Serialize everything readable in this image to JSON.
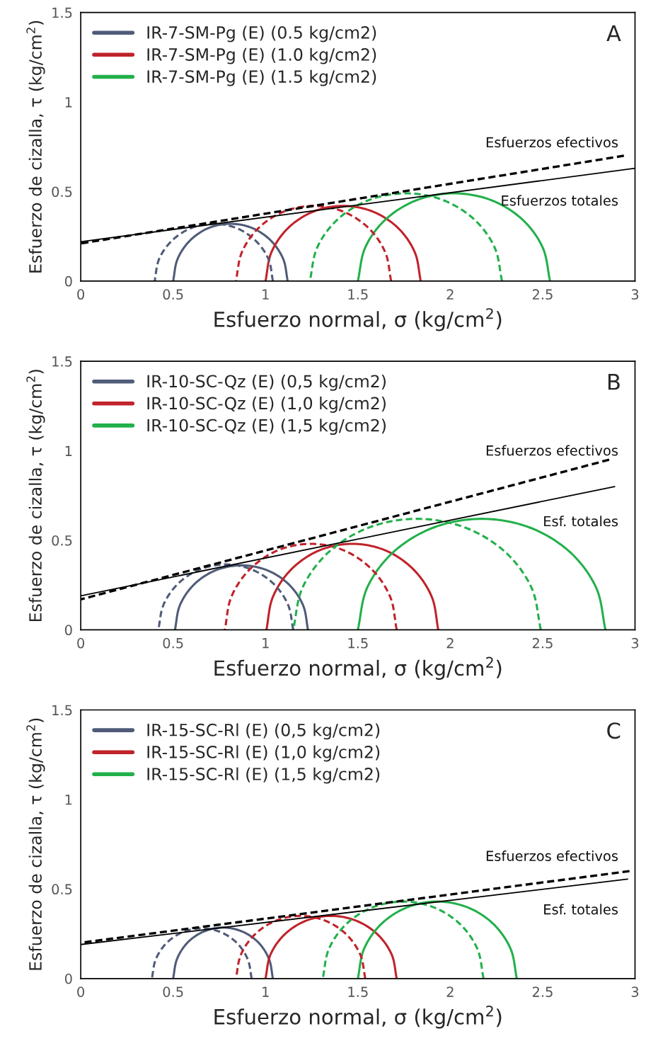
{
  "chart_data": [
    {
      "type": "line",
      "title": "A",
      "xlabel": "Esfuerzo normal, σ (kg/cm$^{2}$)",
      "ylabel": "Esfuerzo de cizalla, τ (kg/cm$^{2}$)",
      "xlim": [
        0,
        3
      ],
      "ylim": [
        0,
        1.5
      ],
      "xticks": [
        0,
        0.5,
        1,
        1.5,
        2,
        2.5,
        3
      ],
      "yticks": [
        0,
        0.5,
        1,
        1.5
      ],
      "legend": "top left",
      "annotations": [
        "Esfuerzos efectivos",
        "Esfuerzos totales"
      ],
      "series": [
        {
          "name": "IR-7-SM-Pg (E) (0.5 kg/cm2)",
          "color": "#4f5b78",
          "line_style": "solid",
          "x": [
            1.12,
            1.096,
            1.029,
            0.929,
            0.81,
            0.691,
            0.591,
            0.524,
            0.5
          ],
          "values": [
            0,
            0.123,
            0.226,
            0.296,
            0.32,
            0.296,
            0.226,
            0.123,
            0
          ]
        },
        {
          "name": "IR-7-SM-Pg (E) (1.0 kg/cm2)",
          "color": "#c0232b",
          "line_style": "solid",
          "x": [
            1.84,
            1.808,
            1.717,
            1.581,
            1.42,
            1.259,
            1.123,
            1.032,
            1.0
          ],
          "values": [
            0,
            0.161,
            0.297,
            0.388,
            0.42,
            0.388,
            0.297,
            0.161,
            0
          ]
        },
        {
          "name": "IR-7-SM-Pg (E) (1.5 kg/cm2)",
          "color": "#22b04b",
          "line_style": "solid",
          "x": [
            2.54,
            2.5,
            2.388,
            2.219,
            2.02,
            1.821,
            1.652,
            1.54,
            1.5
          ],
          "values": [
            0,
            0.188,
            0.346,
            0.453,
            0.49,
            0.453,
            0.346,
            0.188,
            0
          ]
        },
        {
          "color": "#4f5b78",
          "line_style": "dashed",
          "x": [
            1.04,
            1.016,
            0.946,
            0.843,
            0.72,
            0.597,
            0.494,
            0.424,
            0.4
          ],
          "values": [
            0,
            0.123,
            0.226,
            0.296,
            0.32,
            0.296,
            0.226,
            0.123,
            0
          ]
        },
        {
          "color": "#c0232b",
          "line_style": "dashed",
          "x": [
            1.68,
            1.648,
            1.557,
            1.421,
            1.26,
            1.099,
            0.963,
            0.872,
            0.84
          ],
          "values": [
            0,
            0.161,
            0.297,
            0.388,
            0.42,
            0.388,
            0.297,
            0.161,
            0
          ]
        },
        {
          "color": "#22b04b",
          "line_style": "dashed",
          "x": [
            2.28,
            2.24,
            2.128,
            1.959,
            1.76,
            1.561,
            1.392,
            1.28,
            1.24
          ],
          "values": [
            0,
            0.188,
            0.346,
            0.453,
            0.49,
            0.453,
            0.346,
            0.188,
            0
          ]
        },
        {
          "color": "#000000",
          "line_style": "dashed",
          "x": [
            0,
            2.94
          ],
          "values": [
            0.21,
            0.7
          ]
        },
        {
          "color": "#000000",
          "line_style": "solid",
          "x": [
            0,
            3
          ],
          "values": [
            0.22,
            0.63
          ]
        }
      ]
    },
    {
      "type": "line",
      "title": "B",
      "xlabel": "Esfuerzo normal, σ (kg/cm$^{2}$)",
      "ylabel": "Esfuerzo de cizalla, τ (kg/cm$^{2}$)",
      "xlim": [
        0,
        3
      ],
      "ylim": [
        0,
        1.5
      ],
      "xticks": [
        0,
        0.5,
        1,
        1.5,
        2,
        2.5,
        3
      ],
      "yticks": [
        0,
        0.5,
        1,
        1.5
      ],
      "legend": "top left",
      "annotations": [
        "Esfuerzos efectivos",
        "Esf. totales"
      ],
      "series": [
        {
          "name": "IR-10-SC-Qz (E) (0,5 kg/cm2)",
          "color": "#4f5b78",
          "line_style": "solid",
          "x": [
            1.23,
            1.203,
            1.125,
            1.008,
            0.87,
            0.732,
            0.615,
            0.537,
            0.51
          ],
          "values": [
            0,
            0.138,
            0.255,
            0.333,
            0.36,
            0.333,
            0.255,
            0.138,
            0
          ]
        },
        {
          "name": "IR-10-SC-Qz (E) (1,0 kg/cm2)",
          "color": "#c0232b",
          "line_style": "solid",
          "x": [
            1.935,
            1.9,
            1.799,
            1.648,
            1.47,
            1.292,
            1.141,
            1.04,
            1.005
          ],
          "values": [
            0,
            0.184,
            0.339,
            0.444,
            0.48,
            0.444,
            0.339,
            0.184,
            0
          ]
        },
        {
          "name": "IR-10-SC-Qz (E) (1,5 kg/cm2)",
          "color": "#22b04b",
          "line_style": "solid",
          "x": [
            2.84,
            2.789,
            2.644,
            2.426,
            2.17,
            1.914,
            1.696,
            1.551,
            1.5
          ],
          "values": [
            0,
            0.237,
            0.438,
            0.573,
            0.62,
            0.573,
            0.438,
            0.237,
            0
          ]
        },
        {
          "color": "#4f5b78",
          "line_style": "dashed",
          "x": [
            1.15,
            1.122,
            1.043,
            0.925,
            0.785,
            0.645,
            0.527,
            0.448,
            0.42
          ],
          "values": [
            0,
            0.14,
            0.258,
            0.337,
            0.365,
            0.337,
            0.258,
            0.14,
            0
          ]
        },
        {
          "color": "#c0232b",
          "line_style": "dashed",
          "x": [
            1.71,
            1.675,
            1.574,
            1.423,
            1.245,
            1.067,
            0.916,
            0.815,
            0.78
          ],
          "values": [
            0,
            0.184,
            0.339,
            0.444,
            0.48,
            0.444,
            0.339,
            0.184,
            0
          ]
        },
        {
          "color": "#22b04b",
          "line_style": "dashed",
          "x": [
            2.49,
            2.439,
            2.294,
            2.076,
            1.82,
            1.564,
            1.346,
            1.201,
            1.15
          ],
          "values": [
            0,
            0.237,
            0.438,
            0.573,
            0.62,
            0.573,
            0.438,
            0.237,
            0
          ]
        },
        {
          "color": "#000000",
          "line_style": "dashed",
          "x": [
            0,
            2.86
          ],
          "values": [
            0.17,
            0.95
          ]
        },
        {
          "color": "#000000",
          "line_style": "solid",
          "x": [
            0,
            2.89
          ],
          "values": [
            0.19,
            0.8
          ]
        }
      ]
    },
    {
      "type": "line",
      "title": "C",
      "xlabel": "Esfuerzo normal, σ (kg/cm$^{2}$)",
      "ylabel": "Esfuerzo de cizalla, τ (kg/cm$^{2}$)",
      "xlim": [
        0,
        3
      ],
      "ylim": [
        0,
        1.5
      ],
      "xticks": [
        0,
        0.5,
        1,
        1.5,
        2,
        2.5,
        3
      ],
      "yticks": [
        0,
        0.5,
        1,
        1.5
      ],
      "legend": "top left",
      "annotations": [
        "Esfuerzos efectivos",
        "Esf. totales"
      ],
      "series": [
        {
          "name": "IR-15-SC-Rl (E) (0,5 kg/cm2)",
          "color": "#4f5b78",
          "line_style": "solid",
          "x": [
            1.04,
            1.019,
            0.961,
            0.873,
            0.77,
            0.667,
            0.579,
            0.521,
            0.5
          ],
          "values": [
            0,
            0.109,
            0.202,
            0.263,
            0.285,
            0.263,
            0.202,
            0.109,
            0
          ]
        },
        {
          "name": "IR-15-SC-Rl (E) (1,0 kg/cm2)",
          "color": "#c0232b",
          "line_style": "solid",
          "x": [
            1.71,
            1.683,
            1.606,
            1.491,
            1.355,
            1.219,
            1.104,
            1.027,
            1.0
          ],
          "values": [
            0,
            0.134,
            0.247,
            0.323,
            0.35,
            0.323,
            0.247,
            0.134,
            0
          ]
        },
        {
          "name": "IR-15-SC-Rl (E) (1,5 kg/cm2)",
          "color": "#22b04b",
          "line_style": "solid",
          "x": [
            2.36,
            2.327,
            2.234,
            2.095,
            1.93,
            1.765,
            1.626,
            1.533,
            1.5
          ],
          "values": [
            0,
            0.165,
            0.304,
            0.397,
            0.43,
            0.397,
            0.304,
            0.165,
            0
          ]
        },
        {
          "color": "#4f5b78",
          "line_style": "dashed",
          "x": [
            0.925,
            0.904,
            0.846,
            0.758,
            0.655,
            0.552,
            0.464,
            0.406,
            0.385
          ],
          "values": [
            0,
            0.107,
            0.198,
            0.259,
            0.28,
            0.259,
            0.198,
            0.107,
            0
          ]
        },
        {
          "color": "#c0232b",
          "line_style": "dashed",
          "x": [
            1.54,
            1.513,
            1.437,
            1.324,
            1.19,
            1.056,
            0.943,
            0.867,
            0.84
          ],
          "values": [
            0,
            0.134,
            0.247,
            0.323,
            0.35,
            0.323,
            0.247,
            0.134,
            0
          ]
        },
        {
          "color": "#22b04b",
          "line_style": "dashed",
          "x": [
            2.18,
            2.147,
            2.053,
            1.912,
            1.745,
            1.578,
            1.437,
            1.343,
            1.31
          ],
          "values": [
            0,
            0.165,
            0.304,
            0.397,
            0.43,
            0.397,
            0.304,
            0.165,
            0
          ]
        },
        {
          "color": "#000000",
          "line_style": "dashed",
          "x": [
            0,
            2.97
          ],
          "values": [
            0.2,
            0.6
          ]
        },
        {
          "color": "#000000",
          "line_style": "solid",
          "x": [
            0,
            2.96
          ],
          "values": [
            0.19,
            0.555
          ]
        }
      ]
    }
  ]
}
